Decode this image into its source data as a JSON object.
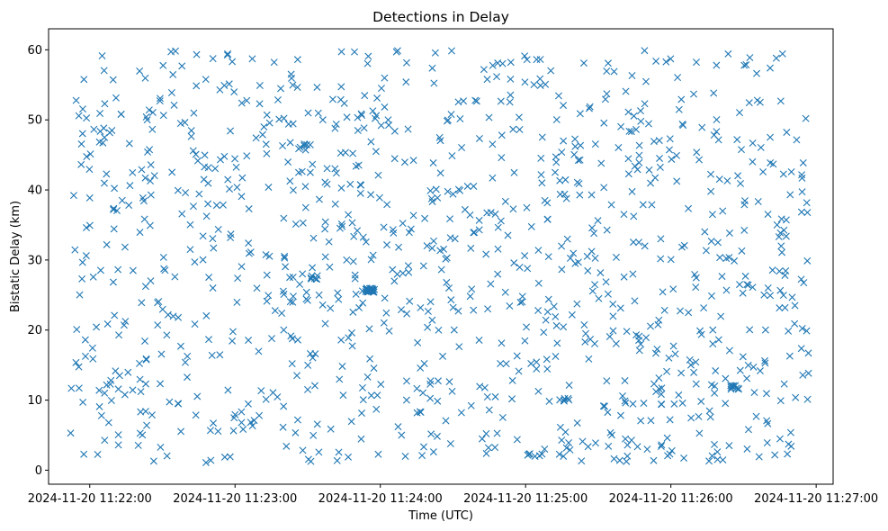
{
  "chart_data": {
    "type": "scatter",
    "title": "Detections in Delay",
    "xlabel": "Time (UTC)",
    "ylabel": "Bistatic Delay (km)",
    "marker": "x",
    "color": "#1f77b4",
    "xlim": [
      "2024-11-20 11:21:43",
      "2024-11-20 11:27:07"
    ],
    "ylim": [
      -2,
      63
    ],
    "x_ticks": [
      "2024-11-20 11:22:00",
      "2024-11-20 11:23:00",
      "2024-11-20 11:24:00",
      "2024-11-20 11:25:00",
      "2024-11-20 11:26:00",
      "2024-11-20 11:27:00"
    ],
    "y_ticks": [
      0,
      10,
      20,
      30,
      40,
      50,
      60
    ],
    "series": [
      {
        "name": "detections",
        "x_start": "2024-11-20 11:21:52",
        "x_end": "2024-11-20 11:26:57",
        "approx_point_count": 1100,
        "distribution": "uniform random over time and delay 1–60 km",
        "clusters": [
          {
            "center_time": "2024-11-20 11:23:56",
            "delay": 25.7,
            "count": 30
          },
          {
            "center_time": "2024-11-20 11:23:32",
            "delay": 27.5,
            "count": 6
          },
          {
            "center_time": "2024-11-20 11:25:16",
            "delay": 10.0,
            "count": 6
          },
          {
            "center_time": "2024-11-20 11:26:26",
            "delay": 11.8,
            "count": 10
          }
        ]
      }
    ]
  }
}
